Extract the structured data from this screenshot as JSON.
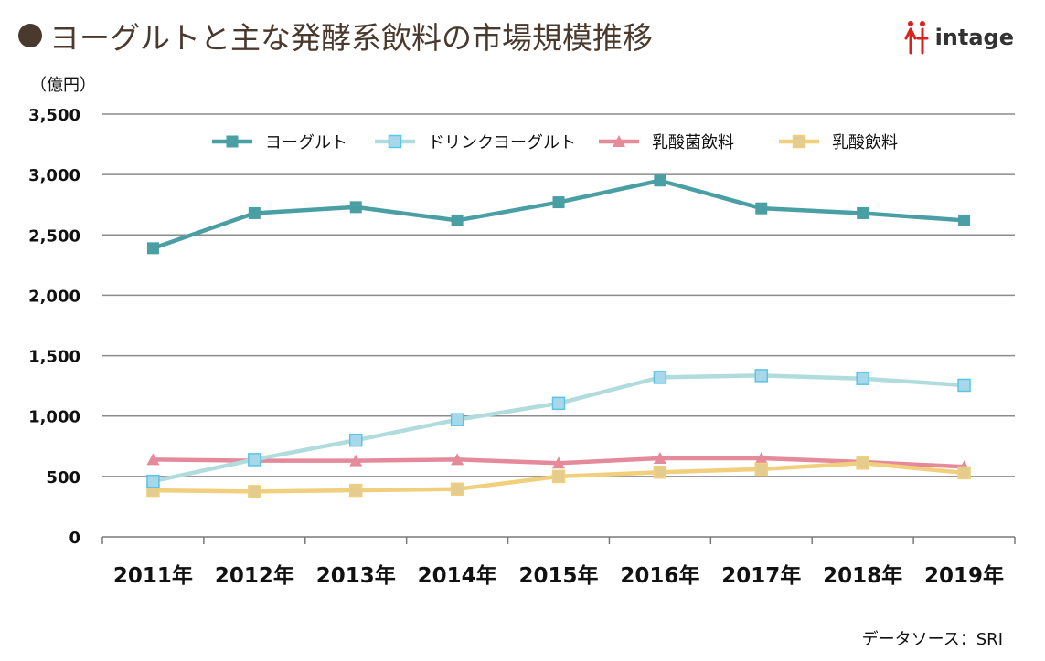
{
  "header": {
    "title": "ヨーグルトと主な発酵系飲料の市場規模推移",
    "logo_text": "intage",
    "logo_color": "#d6231f"
  },
  "footer": {
    "source": "データソース：SRI"
  },
  "chart_data": {
    "type": "line",
    "ylabel": "（億円）",
    "categories": [
      "2011年",
      "2012年",
      "2013年",
      "2014年",
      "2015年",
      "2016年",
      "2017年",
      "2018年",
      "2019年"
    ],
    "ylim": [
      0,
      3500
    ],
    "yticks": [
      "0",
      "500",
      "1,000",
      "1,500",
      "2,000",
      "2,500",
      "3,000",
      "3,500"
    ],
    "ytick_values": [
      0,
      500,
      1000,
      1500,
      2000,
      2500,
      3000,
      3500
    ],
    "grid": true,
    "legend_position": "top",
    "series": [
      {
        "name": "ヨーグルト",
        "color": "#4a9fa4",
        "fill": "#4a9fa4",
        "marker": "square",
        "values": [
          2390,
          2680,
          2730,
          2620,
          2770,
          2950,
          2720,
          2680,
          2620
        ]
      },
      {
        "name": "ドリンクヨーグルト",
        "color": "#b1dcdd",
        "fill": "#a6d8ea",
        "marker": "square-outline",
        "values": [
          460,
          640,
          800,
          970,
          1105,
          1320,
          1335,
          1310,
          1255
        ]
      },
      {
        "name": "乳酸菌飲料",
        "color": "#e48a9a",
        "fill": "#e48a9a",
        "marker": "triangle",
        "values": [
          640,
          630,
          630,
          640,
          610,
          650,
          650,
          620,
          580
        ]
      },
      {
        "name": "乳酸飲料",
        "color": "#f0cf7d",
        "fill": "#e3cc8e",
        "marker": "square-beige",
        "values": [
          385,
          375,
          385,
          395,
          500,
          535,
          560,
          610,
          530
        ]
      }
    ]
  }
}
